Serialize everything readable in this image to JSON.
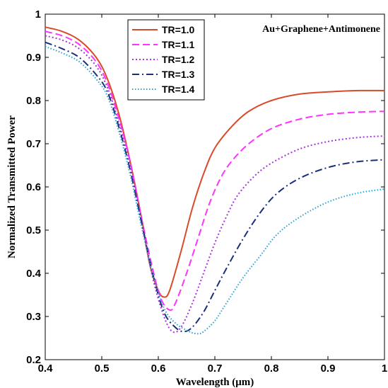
{
  "chart_data": {
    "type": "line",
    "title": "",
    "annotation": "Au+Graphene+Antimonene",
    "xlabel": "Wavelength (μm)",
    "ylabel": "Normalized Transmitted Power",
    "xlim": [
      0.4,
      1.0
    ],
    "ylim": [
      0.2,
      1.0
    ],
    "xticks": [
      0.4,
      0.5,
      0.6,
      0.7,
      0.8,
      0.9,
      1.0
    ],
    "xtick_labels": [
      "0.4",
      "0.5",
      "0.6",
      "0.7",
      "0.8",
      "0.9",
      "1"
    ],
    "yticks": [
      0.2,
      0.3,
      0.4,
      0.5,
      0.6,
      0.7,
      0.8,
      0.9,
      1.0
    ],
    "ytick_labels": [
      "0.2",
      "0.3",
      "0.4",
      "0.5",
      "0.6",
      "0.7",
      "0.8",
      "0.9",
      "1"
    ],
    "grid": false,
    "legend_position": "top-center",
    "series": [
      {
        "name": "TR=1.0",
        "color": "#d94a2b",
        "dash": "solid",
        "x": [
          0.4,
          0.43,
          0.46,
          0.49,
          0.51,
          0.53,
          0.55,
          0.57,
          0.585,
          0.6,
          0.61,
          0.62,
          0.64,
          0.66,
          0.68,
          0.7,
          0.73,
          0.76,
          0.8,
          0.85,
          0.9,
          0.95,
          1.0
        ],
        "y": [
          0.97,
          0.96,
          0.94,
          0.9,
          0.85,
          0.77,
          0.66,
          0.53,
          0.42,
          0.36,
          0.345,
          0.36,
          0.45,
          0.55,
          0.63,
          0.69,
          0.74,
          0.775,
          0.8,
          0.815,
          0.82,
          0.823,
          0.823
        ]
      },
      {
        "name": "TR=1.1",
        "color": "#ff33ff",
        "dash": "dashed",
        "x": [
          0.4,
          0.43,
          0.46,
          0.49,
          0.51,
          0.53,
          0.55,
          0.57,
          0.59,
          0.605,
          0.62,
          0.63,
          0.65,
          0.67,
          0.69,
          0.71,
          0.73,
          0.76,
          0.8,
          0.85,
          0.9,
          0.95,
          1.0
        ],
        "y": [
          0.96,
          0.95,
          0.93,
          0.89,
          0.84,
          0.76,
          0.66,
          0.53,
          0.41,
          0.34,
          0.315,
          0.33,
          0.4,
          0.48,
          0.56,
          0.62,
          0.66,
          0.7,
          0.735,
          0.757,
          0.768,
          0.773,
          0.775
        ]
      },
      {
        "name": "TR=1.2",
        "color": "#aa33dd",
        "dash": "dotted",
        "x": [
          0.4,
          0.43,
          0.46,
          0.49,
          0.51,
          0.53,
          0.55,
          0.57,
          0.59,
          0.61,
          0.625,
          0.64,
          0.66,
          0.68,
          0.7,
          0.72,
          0.74,
          0.77,
          0.8,
          0.85,
          0.9,
          0.95,
          1.0
        ],
        "y": [
          0.95,
          0.94,
          0.92,
          0.88,
          0.83,
          0.75,
          0.65,
          0.52,
          0.39,
          0.3,
          0.265,
          0.275,
          0.33,
          0.4,
          0.47,
          0.53,
          0.58,
          0.625,
          0.655,
          0.688,
          0.705,
          0.714,
          0.718
        ]
      },
      {
        "name": "TR=1.3",
        "color": "#1a2f7a",
        "dash": "dashdot",
        "x": [
          0.4,
          0.43,
          0.46,
          0.49,
          0.51,
          0.53,
          0.55,
          0.57,
          0.59,
          0.61,
          0.63,
          0.645,
          0.66,
          0.68,
          0.7,
          0.72,
          0.75,
          0.78,
          0.81,
          0.85,
          0.9,
          0.95,
          1.0
        ],
        "y": [
          0.935,
          0.92,
          0.9,
          0.86,
          0.82,
          0.74,
          0.64,
          0.52,
          0.4,
          0.31,
          0.275,
          0.265,
          0.275,
          0.31,
          0.36,
          0.41,
          0.48,
          0.54,
          0.585,
          0.62,
          0.645,
          0.658,
          0.663
        ]
      },
      {
        "name": "TR=1.4",
        "color": "#29a3d6",
        "dash": "dotted-fine",
        "x": [
          0.4,
          0.43,
          0.46,
          0.49,
          0.51,
          0.53,
          0.55,
          0.57,
          0.59,
          0.61,
          0.63,
          0.655,
          0.67,
          0.68,
          0.7,
          0.72,
          0.75,
          0.78,
          0.81,
          0.85,
          0.9,
          0.95,
          1.0
        ],
        "y": [
          0.925,
          0.91,
          0.89,
          0.85,
          0.81,
          0.73,
          0.63,
          0.51,
          0.4,
          0.32,
          0.285,
          0.265,
          0.26,
          0.265,
          0.29,
          0.33,
          0.39,
          0.44,
          0.49,
          0.53,
          0.565,
          0.585,
          0.595
        ]
      }
    ]
  }
}
